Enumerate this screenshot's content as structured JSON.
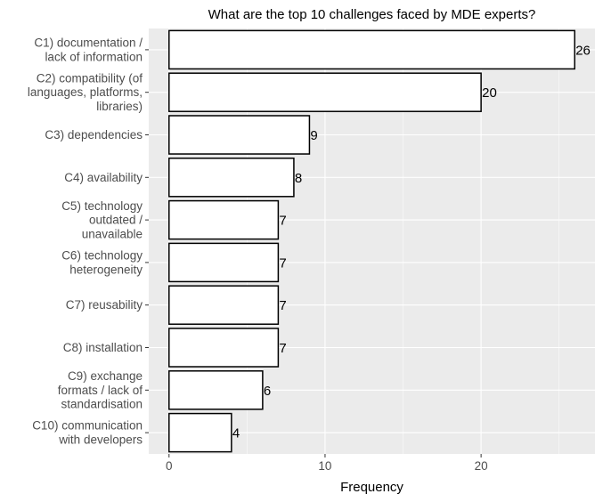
{
  "chart_data": {
    "type": "bar",
    "orientation": "horizontal",
    "title": "What are the top 10  challenges faced by MDE experts?",
    "xlabel": "Frequency",
    "ylabel": "",
    "categories": [
      [
        "C1) documentation /",
        "lack of information"
      ],
      [
        "C2) compatibility (of",
        "languages, platforms,",
        "libraries)"
      ],
      [
        "C3) dependencies"
      ],
      [
        "C4) availability"
      ],
      [
        "C5) technology",
        "outdated /",
        "unavailable"
      ],
      [
        "C6) technology",
        "heterogeneity"
      ],
      [
        "C7) reusability"
      ],
      [
        "C8) installation"
      ],
      [
        "C9) exchange",
        "formats / lack of",
        "standardisation"
      ],
      [
        "C10) communication",
        "with developers"
      ]
    ],
    "values": [
      26,
      20,
      9,
      8,
      7,
      7,
      7,
      7,
      6,
      4
    ],
    "xlim": [
      -1.3,
      27.3
    ],
    "xticks": [
      0,
      10,
      20
    ],
    "grid": true,
    "colors": {
      "panel_background": "#ebebeb",
      "grid_major": "#ffffff",
      "bar_fill": "#ffffff",
      "bar_stroke": "#000000"
    }
  }
}
